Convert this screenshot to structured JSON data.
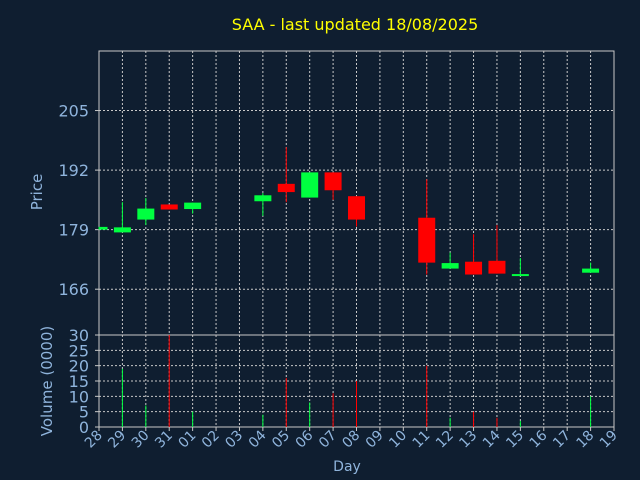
{
  "chart_data": [
    {
      "type": "candlestick",
      "title": "SAA - last updated 18/08/2025",
      "xlabel": "Day",
      "ylabel": "Price",
      "ylim": [
        156,
        218
      ],
      "yticks": [
        "166",
        "179",
        "192",
        "205"
      ],
      "x_tick_labels": [
        "28",
        "29",
        "30",
        "31",
        "01",
        "02",
        "03",
        "04",
        "05",
        "06",
        "07",
        "08",
        "09",
        "10",
        "11",
        "12",
        "13",
        "14",
        "15",
        "16",
        "17",
        "18",
        "19"
      ],
      "grid": true,
      "colors": {
        "up": "#00ff40",
        "down": "#ff0000",
        "title": "#ffff00",
        "axis_text": "#8fb4dc",
        "background": "#0f1e30",
        "grid": "#c8c8c8"
      },
      "candles": [
        {
          "day": "28",
          "open": 179.0,
          "close": 179.6,
          "high": 179.6,
          "low": 179.0
        },
        {
          "day": "29",
          "open": 178.4,
          "close": 179.5,
          "high": 185.0,
          "low": 178.4
        },
        {
          "day": "30",
          "open": 181.2,
          "close": 183.6,
          "high": 185.9,
          "low": 180.0
        },
        {
          "day": "31",
          "open": 184.5,
          "close": 183.4,
          "high": 184.5,
          "low": 183.4
        },
        {
          "day": "01",
          "open": 183.5,
          "close": 184.9,
          "high": 184.9,
          "low": 182.5
        },
        {
          "day": "04",
          "open": 185.2,
          "close": 186.5,
          "high": 187.0,
          "low": 182.0
        },
        {
          "day": "05",
          "open": 189.0,
          "close": 187.2,
          "high": 197.0,
          "low": 185.0
        },
        {
          "day": "06",
          "open": 186.0,
          "close": 191.5,
          "high": 191.5,
          "low": 186.0
        },
        {
          "day": "07",
          "open": 191.5,
          "close": 187.6,
          "high": 191.5,
          "low": 185.5
        },
        {
          "day": "08",
          "open": 186.3,
          "close": 181.2,
          "high": 186.3,
          "low": 179.7
        },
        {
          "day": "11",
          "open": 181.6,
          "close": 171.8,
          "high": 190.0,
          "low": 169.2
        },
        {
          "day": "12",
          "open": 170.5,
          "close": 171.7,
          "high": 174.0,
          "low": 170.5
        },
        {
          "day": "13",
          "open": 172.0,
          "close": 169.2,
          "high": 178.0,
          "low": 169.2
        },
        {
          "day": "14",
          "open": 172.2,
          "close": 169.4,
          "high": 180.0,
          "low": 169.4
        },
        {
          "day": "15",
          "open": 169.2,
          "close": 169.3,
          "high": 172.8,
          "low": 169.2
        },
        {
          "day": "18",
          "open": 169.6,
          "close": 170.5,
          "high": 171.8,
          "low": 169.6
        }
      ]
    },
    {
      "type": "bar",
      "xlabel": "Day",
      "ylabel": "Volume (0000)",
      "ylim": [
        0,
        30
      ],
      "yticks": [
        "0",
        "5",
        "10",
        "15",
        "20",
        "25",
        "30"
      ],
      "x_tick_labels": [
        "28",
        "29",
        "30",
        "31",
        "01",
        "02",
        "03",
        "04",
        "05",
        "06",
        "07",
        "08",
        "09",
        "10",
        "11",
        "12",
        "13",
        "14",
        "15",
        "16",
        "17",
        "18",
        "19"
      ],
      "grid": true,
      "bars": [
        {
          "day": "29",
          "value": 19,
          "direction": "up"
        },
        {
          "day": "30",
          "value": 7,
          "direction": "up"
        },
        {
          "day": "31",
          "value": 30,
          "direction": "down"
        },
        {
          "day": "01",
          "value": 5,
          "direction": "up"
        },
        {
          "day": "04",
          "value": 4,
          "direction": "up"
        },
        {
          "day": "05",
          "value": 16,
          "direction": "down"
        },
        {
          "day": "06",
          "value": 8,
          "direction": "up"
        },
        {
          "day": "07",
          "value": 11,
          "direction": "down"
        },
        {
          "day": "08",
          "value": 15,
          "direction": "down"
        },
        {
          "day": "11",
          "value": 20,
          "direction": "down"
        },
        {
          "day": "12",
          "value": 3,
          "direction": "up"
        },
        {
          "day": "13",
          "value": 5,
          "direction": "down"
        },
        {
          "day": "14",
          "value": 3,
          "direction": "down"
        },
        {
          "day": "15",
          "value": 2,
          "direction": "up"
        },
        {
          "day": "18",
          "value": 10,
          "direction": "up"
        }
      ]
    }
  ]
}
